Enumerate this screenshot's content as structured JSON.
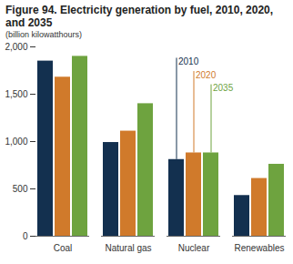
{
  "chart_data": {
    "type": "bar",
    "title": "Figure 94. Electricity generation by fuel, 2010, 2020, and 2035",
    "subtitle": "(billion kilowatthours)",
    "categories": [
      "Coal",
      "Natural gas",
      "Nuclear",
      "Renewables"
    ],
    "series": [
      {
        "name": "2010",
        "color": "#13304f",
        "values": [
          1850,
          990,
          810,
          430
        ]
      },
      {
        "name": "2020",
        "color": "#d07a2b",
        "values": [
          1680,
          1110,
          880,
          610
        ]
      },
      {
        "name": "2035",
        "color": "#6ea33f",
        "values": [
          1900,
          1400,
          880,
          760
        ]
      }
    ],
    "ylim": [
      0,
      2000
    ],
    "yticks": [
      0,
      500,
      {
        "value": 1000,
        "label": "1,000"
      },
      {
        "value": 1500,
        "label": "1,500"
      },
      {
        "value": 2000,
        "label": "2,000"
      }
    ],
    "grid": false
  }
}
